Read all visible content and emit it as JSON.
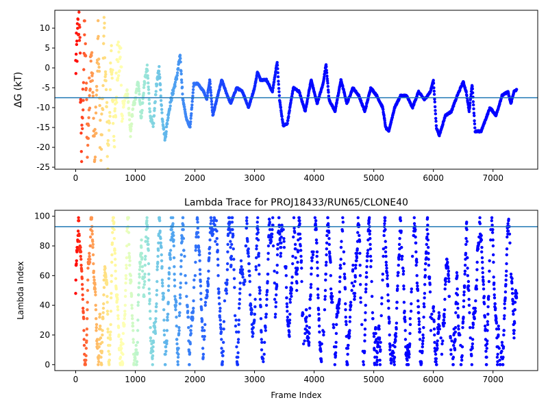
{
  "chart_data": [
    {
      "type": "scatter",
      "title": "",
      "xlabel": "",
      "ylabel": "ΔG (kT)",
      "xlim": [
        -350,
        7750
      ],
      "ylim": [
        -25.5,
        14.5
      ],
      "xticks": [
        0,
        1000,
        2000,
        3000,
        4000,
        5000,
        6000,
        7000
      ],
      "yticks": [
        -25,
        -20,
        -15,
        -10,
        -5,
        0,
        5,
        10
      ],
      "hline": -7.5,
      "hline_color": "#1f77b4",
      "colormap": "rainbow (reversed: late frames purple, early frames red)",
      "n_frames": 7400,
      "trace_keypoints": [
        [
          0,
          0
        ],
        [
          60,
          14
        ],
        [
          100,
          -22
        ],
        [
          150,
          10
        ],
        [
          200,
          -20
        ],
        [
          260,
          6
        ],
        [
          320,
          -23
        ],
        [
          380,
          8
        ],
        [
          420,
          -25
        ],
        [
          480,
          9
        ],
        [
          540,
          -22
        ],
        [
          600,
          2
        ],
        [
          650,
          -16
        ],
        [
          700,
          0
        ],
        [
          760,
          3
        ],
        [
          780,
          -12
        ],
        [
          820,
          -8
        ],
        [
          870,
          -6
        ],
        [
          920,
          -17
        ],
        [
          960,
          -10
        ],
        [
          1000,
          -8
        ],
        [
          1050,
          -3
        ],
        [
          1100,
          -13
        ],
        [
          1150,
          -4
        ],
        [
          1200,
          0
        ],
        [
          1250,
          -12
        ],
        [
          1300,
          -15
        ],
        [
          1350,
          -5
        ],
        [
          1400,
          0
        ],
        [
          1450,
          -12
        ],
        [
          1500,
          -18
        ],
        [
          1550,
          -12
        ],
        [
          1600,
          -8
        ],
        [
          1650,
          -5
        ],
        [
          1700,
          -2
        ],
        [
          1750,
          3
        ],
        [
          1800,
          -8
        ],
        [
          1860,
          -13
        ],
        [
          1920,
          -15
        ],
        [
          1980,
          -4
        ],
        [
          2050,
          -4
        ],
        [
          2150,
          -6
        ],
        [
          2200,
          -8
        ],
        [
          2250,
          -3
        ],
        [
          2300,
          -12
        ],
        [
          2400,
          -6
        ],
        [
          2450,
          -3
        ],
        [
          2520,
          -6
        ],
        [
          2600,
          -9
        ],
        [
          2700,
          -5
        ],
        [
          2800,
          -6
        ],
        [
          2900,
          -10
        ],
        [
          3000,
          -5
        ],
        [
          3050,
          -1
        ],
        [
          3100,
          -3
        ],
        [
          3200,
          -3
        ],
        [
          3300,
          -6
        ],
        [
          3380,
          1.5
        ],
        [
          3420,
          -8
        ],
        [
          3480,
          -14.5
        ],
        [
          3550,
          -14
        ],
        [
          3650,
          -5
        ],
        [
          3750,
          -6
        ],
        [
          3850,
          -11
        ],
        [
          3950,
          -3
        ],
        [
          4050,
          -9
        ],
        [
          4150,
          -4
        ],
        [
          4200,
          1
        ],
        [
          4250,
          -8
        ],
        [
          4350,
          -11
        ],
        [
          4450,
          -3
        ],
        [
          4550,
          -9
        ],
        [
          4650,
          -5
        ],
        [
          4750,
          -7
        ],
        [
          4850,
          -11
        ],
        [
          4950,
          -5
        ],
        [
          5050,
          -7
        ],
        [
          5150,
          -10
        ],
        [
          5200,
          -15
        ],
        [
          5250,
          -16
        ],
        [
          5350,
          -10
        ],
        [
          5450,
          -7
        ],
        [
          5550,
          -7
        ],
        [
          5650,
          -10
        ],
        [
          5750,
          -6
        ],
        [
          5850,
          -8
        ],
        [
          5950,
          -6
        ],
        [
          6000,
          -3
        ],
        [
          6050,
          -15
        ],
        [
          6100,
          -17
        ],
        [
          6200,
          -12
        ],
        [
          6300,
          -11
        ],
        [
          6400,
          -7
        ],
        [
          6500,
          -3.5
        ],
        [
          6550,
          -6
        ],
        [
          6600,
          -11
        ],
        [
          6650,
          -4
        ],
        [
          6700,
          -16
        ],
        [
          6800,
          -16
        ],
        [
          6850,
          -14
        ],
        [
          6950,
          -10
        ],
        [
          7050,
          -12
        ],
        [
          7150,
          -7
        ],
        [
          7250,
          -6
        ],
        [
          7300,
          -9
        ],
        [
          7350,
          -6
        ],
        [
          7400,
          -5.5
        ]
      ]
    },
    {
      "type": "scatter",
      "title": "Lambda Trace for PROJ18433/RUN65/CLONE40",
      "xlabel": "Frame Index",
      "ylabel": "Lambda Index",
      "xlim": [
        -350,
        7750
      ],
      "ylim": [
        -4,
        104
      ],
      "xticks": [
        0,
        1000,
        2000,
        3000,
        4000,
        5000,
        6000,
        7000
      ],
      "yticks": [
        0,
        20,
        40,
        60,
        80,
        100
      ],
      "hline": 93,
      "hline_color": "#1f77b4",
      "colormap": "rainbow (reversed: late frames purple, early frames red)",
      "n_frames": 7400,
      "lambda_range": [
        0,
        99
      ]
    }
  ]
}
